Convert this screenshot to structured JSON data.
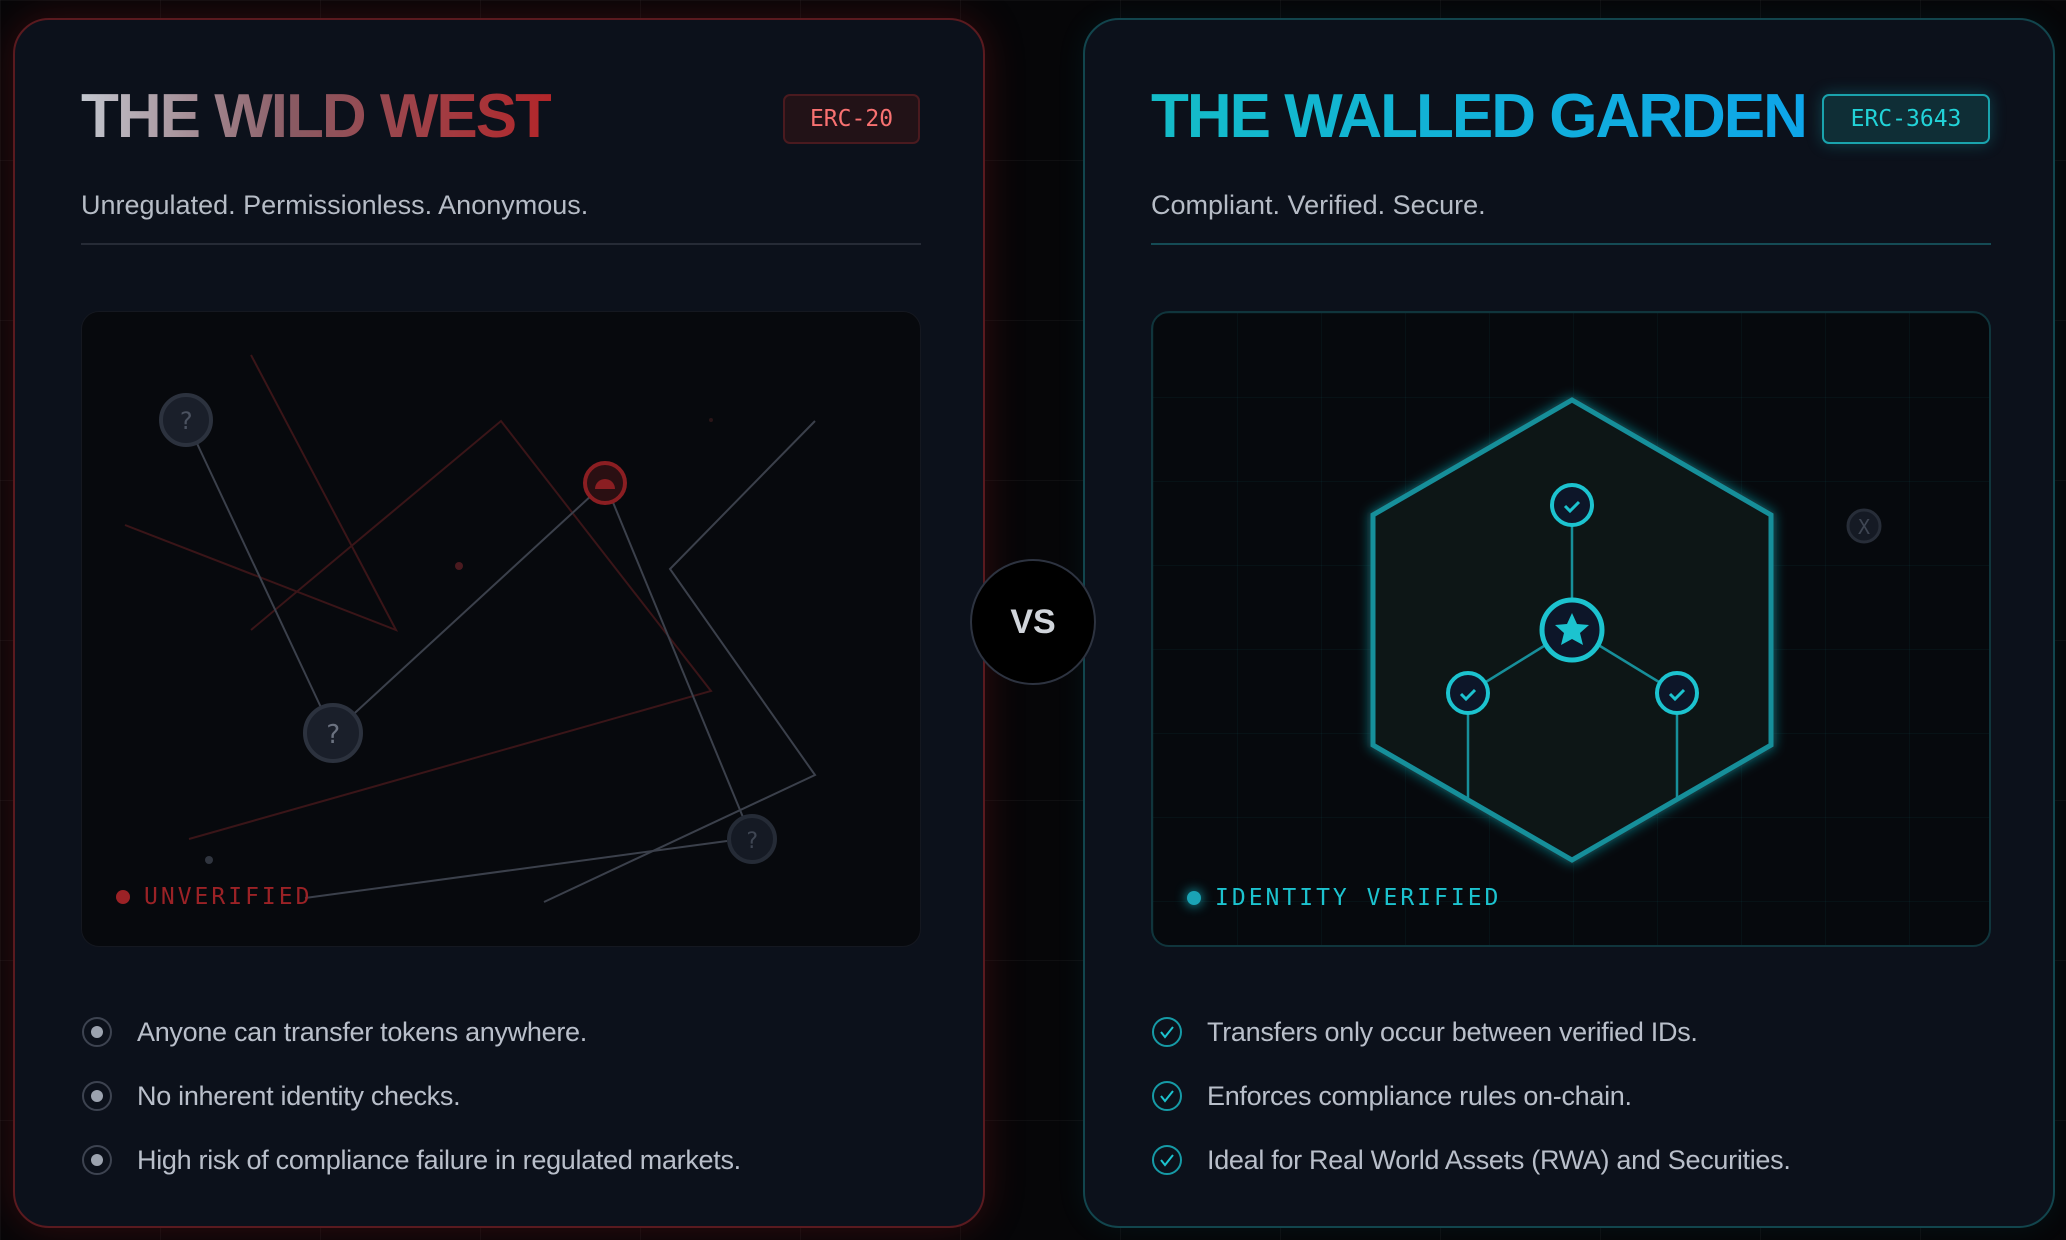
{
  "left": {
    "title": "THE WILD WEST",
    "badge": "ERC-20",
    "subtitle": "Unregulated. Permissionless. Anonymous.",
    "status": "UNVERIFIED",
    "node_glyph": "?",
    "accent": "#b91c1c",
    "items": [
      "Anyone can transfer tokens anywhere.",
      "No inherent identity checks.",
      "High risk of compliance failure in regulated markets."
    ],
    "item_icon": "radio-dot-icon"
  },
  "vs": "VS",
  "right": {
    "title": "THE WALLED GARDEN",
    "badge": "ERC-3643",
    "subtitle": "Compliant. Verified. Secure.",
    "status": "IDENTITY VERIFIED",
    "outsider_glyph": "X",
    "accent": "#14b8c6",
    "items": [
      "Transfers only occur between verified IDs.",
      "Enforces compliance rules on-chain.",
      "Ideal for Real World Assets (RWA) and Securities."
    ],
    "item_icon": "check-circle-icon"
  }
}
